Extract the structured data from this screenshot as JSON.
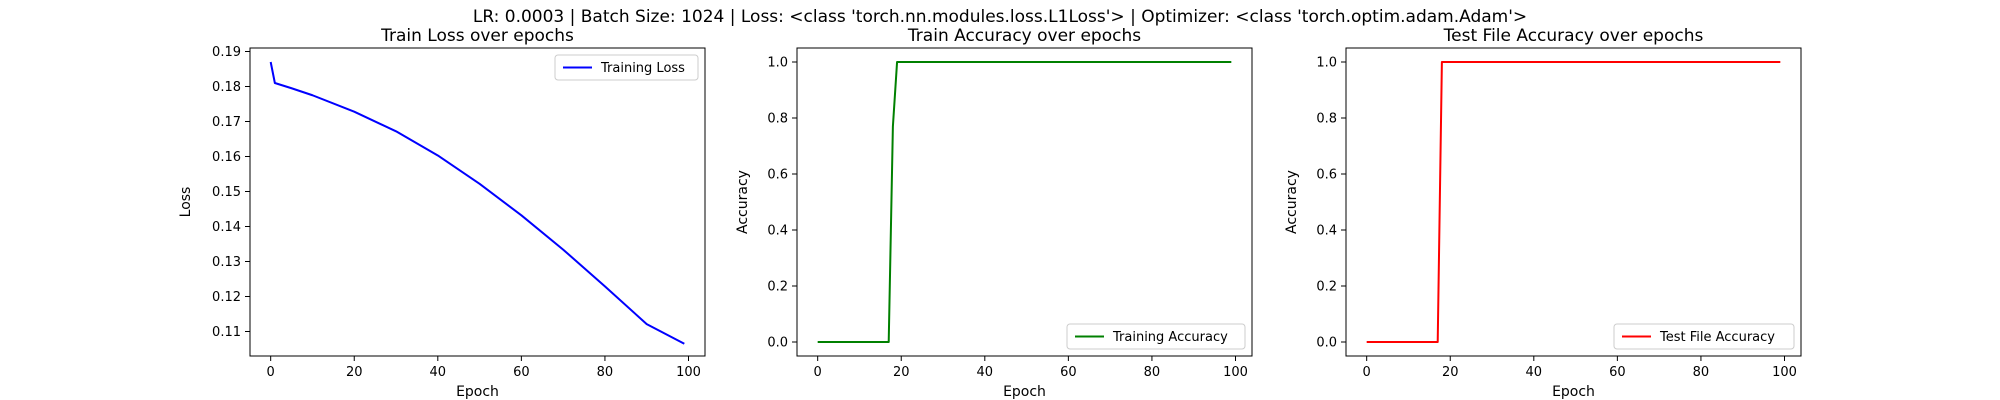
{
  "suptitle": "LR: 0.0003 | Batch Size: 1024 | Loss: <class 'torch.nn.modules.loss.L1Loss'> | Optimizer: <class 'torch.optim.adam.Adam'>",
  "chart_data": [
    {
      "type": "line",
      "title": "Train Loss over epochs",
      "xlabel": "Epoch",
      "ylabel": "Loss",
      "xlim": [
        -4.95,
        103.95
      ],
      "ylim": [
        0.103,
        0.191
      ],
      "xticks": [
        0,
        20,
        40,
        60,
        80,
        100
      ],
      "yticks": [
        0.11,
        0.12,
        0.13,
        0.14,
        0.15,
        0.16,
        0.17,
        0.18,
        0.19
      ],
      "tick_decimals": 2,
      "legend": "top-right",
      "grid": false,
      "series": [
        {
          "name": "Training Loss",
          "color": "#0000ff",
          "x": [
            0,
            1,
            5,
            10,
            20,
            30,
            40,
            50,
            60,
            70,
            80,
            90,
            99
          ],
          "y": [
            0.187,
            0.181,
            0.1795,
            0.1775,
            0.1728,
            0.1672,
            0.1603,
            0.1522,
            0.1432,
            0.1334,
            0.1229,
            0.1121,
            0.1065
          ]
        }
      ]
    },
    {
      "type": "line",
      "title": "Train Accuracy over epochs",
      "xlabel": "Epoch",
      "ylabel": "Accuracy",
      "xlim": [
        -4.95,
        103.95
      ],
      "ylim": [
        -0.05,
        1.05
      ],
      "xticks": [
        0,
        20,
        40,
        60,
        80,
        100
      ],
      "yticks": [
        0.0,
        0.2,
        0.4,
        0.6,
        0.8,
        1.0
      ],
      "tick_decimals": 1,
      "legend": "bottom-right",
      "grid": false,
      "series": [
        {
          "name": "Training Accuracy",
          "color": "#008000",
          "x": [
            0,
            17,
            18,
            19,
            99
          ],
          "y": [
            0.0,
            0.0,
            0.77,
            1.0,
            1.0
          ]
        }
      ]
    },
    {
      "type": "line",
      "title": "Test File Accuracy over epochs",
      "xlabel": "Epoch",
      "ylabel": "Accuracy",
      "xlim": [
        -4.95,
        103.95
      ],
      "ylim": [
        -0.05,
        1.05
      ],
      "xticks": [
        0,
        20,
        40,
        60,
        80,
        100
      ],
      "yticks": [
        0.0,
        0.2,
        0.4,
        0.6,
        0.8,
        1.0
      ],
      "tick_decimals": 1,
      "legend": "bottom-right",
      "grid": false,
      "series": [
        {
          "name": "Test File Accuracy",
          "color": "#ff0000",
          "x": [
            0,
            17,
            18,
            99
          ],
          "y": [
            0.0,
            0.0,
            1.0,
            1.0
          ]
        }
      ]
    }
  ]
}
